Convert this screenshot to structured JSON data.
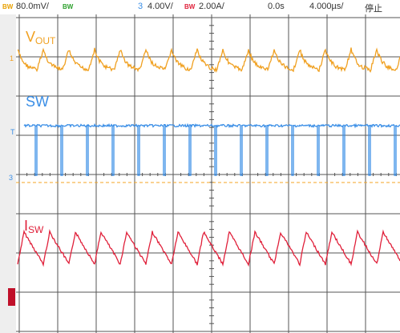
{
  "status_bar": {
    "ch1_bw": "BW",
    "ch1_scale": "80.0mV/",
    "ch2_bw": "BW",
    "ch3_number": "3",
    "ch3_scale": "4.00V/",
    "ch4_bw": "BW",
    "ch4_scale": "2.00A/",
    "delay": "0.0s",
    "timebase": "4.000µs/",
    "run_state": "停止"
  },
  "traces": [
    {
      "label": "V",
      "subscript": "OUT"
    },
    {
      "label": "SW"
    },
    {
      "label": "I",
      "subscript": "SW"
    }
  ],
  "markers": {
    "ch1": "1",
    "trigger": "T",
    "ch3": "3"
  }
}
